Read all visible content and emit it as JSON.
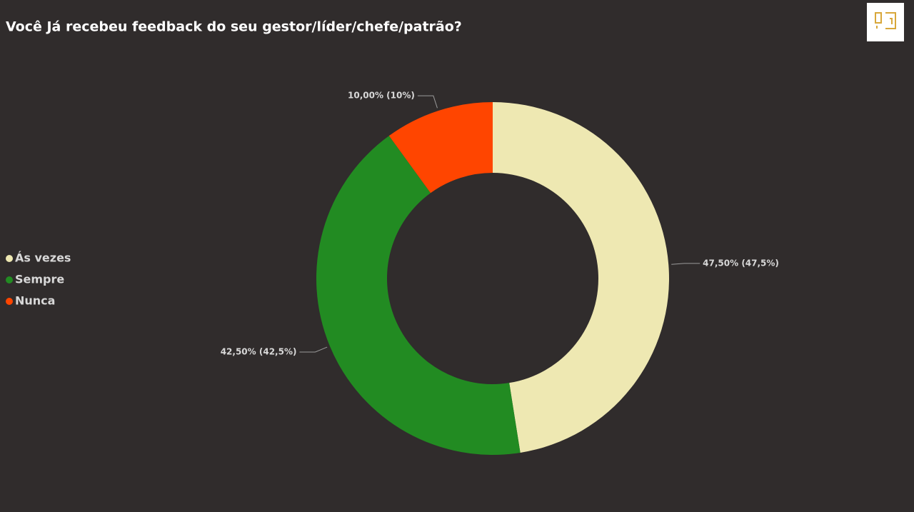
{
  "chart_data": {
    "type": "donut",
    "title": "Você Já recebeu feedback do seu gestor/líder/chefe/patrão?",
    "categories": [
      "Ás vezes",
      "Sempre",
      "Nunca"
    ],
    "values": [
      47.5,
      42.5,
      10
    ],
    "value_labels": [
      "47,50% (47,5%)",
      "42,50% (42,5%)",
      "10,00% (10%)"
    ],
    "colors": [
      "#eee8b2",
      "#228b22",
      "#ff4500"
    ],
    "legend": "left"
  }
}
